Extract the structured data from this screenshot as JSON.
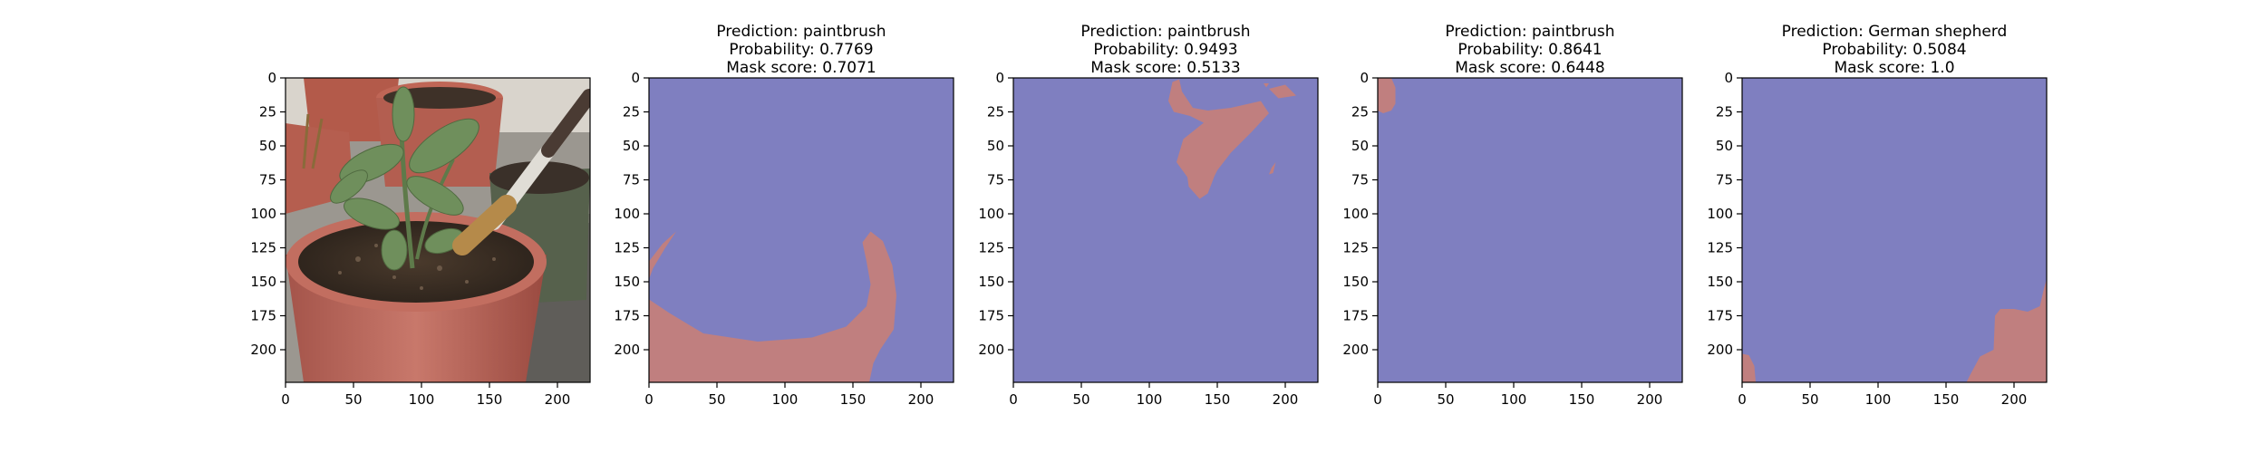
{
  "chart_data": [
    {
      "type": "image",
      "panel": "input-photo",
      "title_lines": [],
      "image_description": "potted sage plant in terracotta pot with a paintbrush",
      "xlim": [
        0,
        224
      ],
      "ylim": [
        224,
        0
      ],
      "xticks": [
        0,
        50,
        100,
        150,
        200
      ],
      "yticks": [
        0,
        25,
        50,
        75,
        100,
        125,
        150,
        175,
        200
      ]
    },
    {
      "type": "heatmap",
      "panel": "mask-1",
      "title_lines": [
        "Prediction: paintbrush",
        "Probability: 0.7769",
        "Mask score: 0.7071"
      ],
      "prediction": "paintbrush",
      "probability": 0.7769,
      "mask_score": 0.7071,
      "xlim": [
        0,
        224
      ],
      "ylim": [
        224,
        0
      ],
      "xticks": [
        0,
        50,
        100,
        150,
        200
      ],
      "yticks": [
        0,
        25,
        50,
        75,
        100,
        125,
        150,
        175,
        200
      ],
      "mask_regions": [
        [
          [
            0,
            163
          ],
          [
            15,
            173
          ],
          [
            40,
            188
          ],
          [
            80,
            194
          ],
          [
            120,
            191
          ],
          [
            145,
            183
          ],
          [
            160,
            168
          ],
          [
            163,
            152
          ],
          [
            160,
            135
          ],
          [
            157,
            121
          ],
          [
            163,
            113
          ],
          [
            172,
            120
          ],
          [
            179,
            138
          ],
          [
            182,
            160
          ],
          [
            180,
            185
          ],
          [
            170,
            200
          ],
          [
            165,
            210
          ],
          [
            162,
            224
          ],
          [
            0,
            224
          ]
        ],
        [
          [
            0,
            135
          ],
          [
            10,
            122
          ],
          [
            20,
            113
          ],
          [
            12,
            125
          ],
          [
            3,
            140
          ],
          [
            0,
            148
          ]
        ]
      ]
    },
    {
      "type": "heatmap",
      "panel": "mask-2",
      "title_lines": [
        "Prediction: paintbrush",
        "Probability: 0.9493",
        "Mask score: 0.5133"
      ],
      "prediction": "paintbrush",
      "probability": 0.9493,
      "mask_score": 0.5133,
      "xlim": [
        0,
        224
      ],
      "ylim": [
        224,
        0
      ],
      "xticks": [
        0,
        50,
        100,
        150,
        200
      ],
      "yticks": [
        0,
        25,
        50,
        75,
        100,
        125,
        150,
        175,
        200
      ],
      "mask_regions": [
        [
          [
            117,
            3
          ],
          [
            122,
            1
          ],
          [
            124,
            10
          ],
          [
            132,
            22
          ],
          [
            143,
            24
          ],
          [
            160,
            22
          ],
          [
            182,
            17
          ],
          [
            188,
            26
          ],
          [
            175,
            40
          ],
          [
            160,
            55
          ],
          [
            150,
            68
          ],
          [
            148,
            72
          ],
          [
            143,
            85
          ],
          [
            137,
            89
          ],
          [
            129,
            80
          ],
          [
            128,
            73
          ],
          [
            120,
            62
          ],
          [
            125,
            45
          ],
          [
            140,
            33
          ],
          [
            130,
            28
          ],
          [
            118,
            25
          ],
          [
            114,
            17
          ]
        ],
        [
          [
            188,
            8
          ],
          [
            200,
            5
          ],
          [
            208,
            13
          ],
          [
            195,
            15
          ]
        ],
        [
          [
            190,
            66
          ],
          [
            193,
            62
          ],
          [
            191,
            70
          ],
          [
            188,
            71
          ]
        ],
        [
          [
            184,
            4
          ],
          [
            188,
            4
          ],
          [
            186,
            7
          ]
        ]
      ]
    },
    {
      "type": "heatmap",
      "panel": "mask-3",
      "title_lines": [
        "Prediction: paintbrush",
        "Probability: 0.8641",
        "Mask score: 0.6448"
      ],
      "prediction": "paintbrush",
      "probability": 0.8641,
      "mask_score": 0.6448,
      "xlim": [
        0,
        224
      ],
      "ylim": [
        224,
        0
      ],
      "xticks": [
        0,
        50,
        100,
        150,
        200
      ],
      "yticks": [
        0,
        25,
        50,
        75,
        100,
        125,
        150,
        175,
        200
      ],
      "mask_regions": [
        [
          [
            0,
            0
          ],
          [
            10,
            0
          ],
          [
            13,
            7
          ],
          [
            13,
            19
          ],
          [
            10,
            24
          ],
          [
            4,
            26
          ],
          [
            0,
            24
          ]
        ]
      ]
    },
    {
      "type": "heatmap",
      "panel": "mask-4",
      "title_lines": [
        "Prediction: German shepherd",
        "Probability: 0.5084",
        "Mask score: 1.0"
      ],
      "prediction": "German shepherd",
      "probability": 0.5084,
      "mask_score": 1.0,
      "xlim": [
        0,
        224
      ],
      "ylim": [
        224,
        0
      ],
      "xticks": [
        0,
        50,
        100,
        150,
        200
      ],
      "yticks": [
        0,
        25,
        50,
        75,
        100,
        125,
        150,
        175,
        200
      ],
      "mask_regions": [
        [
          [
            224,
            148
          ],
          [
            222,
            155
          ],
          [
            219,
            168
          ],
          [
            210,
            172
          ],
          [
            200,
            170
          ],
          [
            190,
            170
          ],
          [
            186,
            175
          ],
          [
            185,
            200
          ],
          [
            175,
            205
          ],
          [
            168,
            218
          ],
          [
            165,
            224
          ],
          [
            224,
            224
          ]
        ],
        [
          [
            0,
            203
          ],
          [
            5,
            204
          ],
          [
            9,
            212
          ],
          [
            10,
            224
          ],
          [
            0,
            224
          ]
        ]
      ]
    }
  ],
  "colors": {
    "background_mask": "#7f7fc0",
    "foreground_mask": "#c07f7f",
    "tick": "#000000"
  }
}
